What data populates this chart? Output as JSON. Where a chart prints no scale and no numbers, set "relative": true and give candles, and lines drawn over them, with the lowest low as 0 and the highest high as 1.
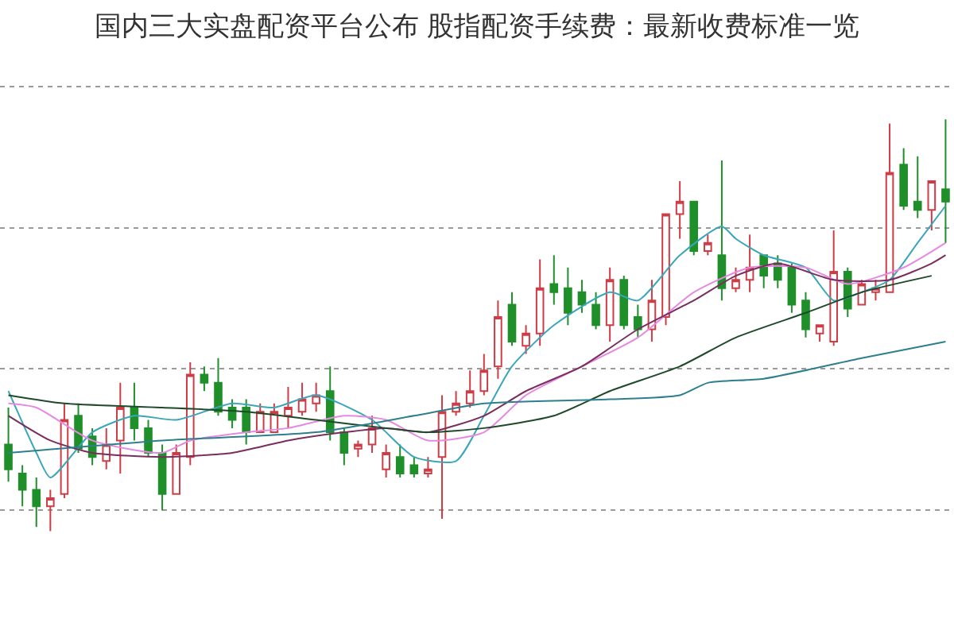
{
  "chart_data": {
    "type": "candlestick",
    "title": "国内三大实盘配资平台公布 股指配资手续费：最新收费标准一览",
    "relative": true,
    "grid": "y",
    "categories": [
      null,
      null,
      null,
      null,
      null,
      null,
      null,
      null,
      null,
      null,
      null,
      null,
      null,
      null,
      null,
      null,
      null,
      null,
      null,
      null,
      null,
      null,
      null,
      null,
      null,
      null,
      null,
      null,
      null,
      null,
      null,
      null,
      null,
      null,
      null,
      null,
      null,
      null,
      null,
      null,
      null,
      null,
      null,
      null,
      null,
      null,
      null,
      null,
      null,
      null,
      null,
      null,
      null,
      null,
      null,
      null,
      null,
      null,
      null,
      null,
      null,
      null,
      null,
      null,
      null,
      null,
      null,
      null
    ],
    "ohlc": [
      [
        0.21,
        0.3,
        0.12,
        0.15
      ],
      [
        0.14,
        0.16,
        0.06,
        0.1
      ],
      [
        0.1,
        0.13,
        0.01,
        0.06
      ],
      [
        0.06,
        0.1,
        0,
        0.08
      ],
      [
        0.09,
        0.31,
        0.08,
        0.27
      ],
      [
        0.28,
        0.31,
        0.19,
        0.2
      ],
      [
        0.23,
        0.25,
        0.16,
        0.18
      ],
      [
        0.17,
        0.25,
        0.15,
        0.21
      ],
      [
        0.22,
        0.36,
        0.14,
        0.3
      ],
      [
        0.3,
        0.36,
        0.22,
        0.25
      ],
      [
        0.25,
        0.27,
        0.18,
        0.19
      ],
      [
        0.19,
        0.21,
        0.05,
        0.09
      ],
      [
        0.09,
        0.21,
        0.09,
        0.19
      ],
      [
        0.18,
        0.41,
        0.16,
        0.38
      ],
      [
        0.38,
        0.4,
        0.34,
        0.36
      ],
      [
        0.36,
        0.42,
        0.28,
        0.29
      ],
      [
        0.3,
        0.32,
        0.25,
        0.27
      ],
      [
        0.3,
        0.32,
        0.21,
        0.24
      ],
      [
        0.24,
        0.31,
        0.24,
        0.29
      ],
      [
        0.24,
        0.31,
        0.24,
        0.29
      ],
      [
        0.28,
        0.35,
        0.25,
        0.3
      ],
      [
        0.29,
        0.36,
        0.28,
        0.32
      ],
      [
        0.31,
        0.36,
        0.29,
        0.33
      ],
      [
        0.34,
        0.4,
        0.22,
        0.24
      ],
      [
        0.24,
        0.25,
        0.16,
        0.19
      ],
      [
        0.2,
        0.22,
        0.18,
        0.21
      ],
      [
        0.21,
        0.28,
        0.19,
        0.25
      ],
      [
        0.15,
        0.21,
        0.13,
        0.19
      ],
      [
        0.18,
        0.21,
        0.13,
        0.14
      ],
      [
        0.16,
        0.18,
        0.13,
        0.14
      ],
      [
        0.14,
        0.18,
        0.13,
        0.15
      ],
      [
        0.18,
        0.33,
        0.03,
        0.29
      ],
      [
        0.29,
        0.34,
        0.28,
        0.31
      ],
      [
        0.31,
        0.39,
        0.3,
        0.34
      ],
      [
        0.34,
        0.43,
        0.33,
        0.39
      ],
      [
        0.4,
        0.56,
        0.37,
        0.52
      ],
      [
        0.55,
        0.58,
        0.45,
        0.46
      ],
      [
        0.45,
        0.5,
        0.43,
        0.48
      ],
      [
        0.48,
        0.66,
        0.45,
        0.59
      ],
      [
        0.6,
        0.67,
        0.55,
        0.58
      ],
      [
        0.59,
        0.64,
        0.5,
        0.53
      ],
      [
        0.58,
        0.61,
        0.53,
        0.55
      ],
      [
        0.55,
        0.58,
        0.49,
        0.5
      ],
      [
        0.5,
        0.64,
        0.46,
        0.61
      ],
      [
        0.61,
        0.62,
        0.49,
        0.5
      ],
      [
        0.52,
        0.55,
        0.47,
        0.49
      ],
      [
        0.49,
        0.61,
        0.46,
        0.56
      ],
      [
        0.52,
        0.77,
        0.5,
        0.77
      ],
      [
        0.77,
        0.85,
        0.71,
        0.8
      ],
      [
        0.8,
        0.8,
        0.67,
        0.68
      ],
      [
        0.68,
        0.72,
        0.67,
        0.7
      ],
      [
        0.67,
        0.9,
        0.56,
        0.59
      ],
      [
        0.59,
        0.64,
        0.58,
        0.61
      ],
      [
        0.61,
        0.72,
        0.58,
        0.64
      ],
      [
        0.67,
        0.67,
        0.59,
        0.62
      ],
      [
        0.65,
        0.67,
        0.59,
        0.61
      ],
      [
        0.64,
        0.65,
        0.53,
        0.55
      ],
      [
        0.56,
        0.58,
        0.47,
        0.49
      ],
      [
        0.48,
        0.5,
        0.46,
        0.5
      ],
      [
        0.46,
        0.73,
        0.45,
        0.63
      ],
      [
        0.63,
        0.64,
        0.52,
        0.54
      ],
      [
        0.55,
        0.61,
        0.55,
        0.6
      ],
      [
        0.58,
        0.61,
        0.56,
        0.59
      ],
      [
        0.58,
        0.99,
        0.58,
        0.87
      ],
      [
        0.89,
        0.93,
        0.78,
        0.79
      ],
      [
        0.8,
        0.91,
        0.76,
        0.78
      ],
      [
        0.78,
        0.85,
        0.73,
        0.85
      ],
      [
        0.83,
        1,
        0.7,
        0.8
      ]
    ],
    "colors": [
      "#1f8f2a",
      "#1f8f2a",
      "#1f8f2a",
      "#d03c46",
      "#d03c46",
      "#1f8f2a",
      "#1f8f2a",
      "#d03c46",
      "#d03c46",
      "#1f8f2a",
      "#1f8f2a",
      "#1f8f2a",
      "#d03c46",
      "#d03c46",
      "#1f8f2a",
      "#1f8f2a",
      "#1f8f2a",
      "#1f8f2a",
      "#d03c46",
      "#d03c46",
      "#d03c46",
      "#d03c46",
      "#d03c46",
      "#1f8f2a",
      "#1f8f2a",
      "#d03c46",
      "#d03c46",
      "#d03c46",
      "#1f8f2a",
      "#1f8f2a",
      "#d03c46",
      "#d03c46",
      "#d03c46",
      "#d03c46",
      "#d03c46",
      "#d03c46",
      "#1f8f2a",
      "#d03c46",
      "#d03c46",
      "#1f8f2a",
      "#1f8f2a",
      "#1f8f2a",
      "#1f8f2a",
      "#d03c46",
      "#1f8f2a",
      "#1f8f2a",
      "#d03c46",
      "#d03c46",
      "#d03c46",
      "#1f8f2a",
      "#d03c46",
      "#1f8f2a",
      "#d03c46",
      "#d03c46",
      "#1f8f2a",
      "#1f8f2a",
      "#1f8f2a",
      "#1f8f2a",
      "#d03c46",
      "#d03c46",
      "#1f8f2a",
      "#d03c46",
      "#d03c46",
      "#d03c46",
      "#1f8f2a",
      "#1f8f2a",
      "#d03c46",
      "#1f8f2a"
    ],
    "series": [
      {
        "type": "line",
        "color": "#3aa6b8",
        "values": [
          0.34,
          null,
          0.19,
          0.13,
          null,
          null,
          0.24,
          null,
          null,
          0.28,
          null,
          null,
          0.27,
          null,
          null,
          null,
          0.31,
          null,
          null,
          0.3,
          null,
          null,
          0.33,
          null,
          null,
          null,
          0.27,
          null,
          null,
          0.18,
          null,
          null,
          0.17,
          null,
          0.28,
          null,
          0.4,
          null,
          null,
          0.5,
          null,
          null,
          null,
          0.58,
          null,
          0.56,
          null,
          null,
          0.67,
          null,
          null,
          0.74,
          0.71,
          null,
          0.67,
          null,
          null,
          0.64,
          null,
          0.56,
          null,
          0.58,
          null,
          0.61,
          null,
          0.7,
          null,
          0.79
        ]
      },
      {
        "type": "line",
        "color": "#e58ae0",
        "values": [
          0.31,
          null,
          0.3,
          null,
          null,
          null,
          0.22,
          null,
          null,
          null,
          null,
          0.19,
          null,
          0.22,
          null,
          null,
          null,
          0.24,
          null,
          null,
          0.25,
          null,
          null,
          null,
          0.28,
          null,
          null,
          0.27,
          null,
          null,
          0.22,
          null,
          null,
          null,
          0.24,
          null,
          null,
          0.33,
          null,
          null,
          null,
          0.4,
          null,
          null,
          null,
          0.47,
          null,
          null,
          null,
          0.58,
          null,
          null,
          null,
          0.64,
          null,
          null,
          null,
          0.64,
          null,
          null,
          0.6,
          null,
          null,
          null,
          0.64,
          null,
          null,
          0.7
        ]
      },
      {
        "type": "line",
        "color": "#7a2e5e",
        "values": [
          0.28,
          null,
          null,
          0.22,
          null,
          null,
          0.19,
          null,
          null,
          null,
          null,
          0.18,
          null,
          null,
          null,
          null,
          0.19,
          null,
          null,
          null,
          0.22,
          null,
          null,
          null,
          0.24,
          null,
          null,
          0.25,
          null,
          null,
          0.24,
          null,
          null,
          null,
          0.28,
          null,
          null,
          0.34,
          null,
          null,
          null,
          0.4,
          null,
          null,
          null,
          0.49,
          null,
          null,
          null,
          0.56,
          null,
          null,
          0.62,
          null,
          null,
          0.65,
          null,
          null,
          null,
          0.61,
          null,
          null,
          null,
          0.61,
          null,
          null,
          0.65,
          0.67
        ]
      },
      {
        "type": "line",
        "color": "#1e4a2a",
        "values": [
          0.33,
          null,
          null,
          null,
          0.31,
          null,
          null,
          null,
          null,
          null,
          null,
          0.3,
          null,
          null,
          null,
          null,
          null,
          0.29,
          null,
          null,
          null,
          null,
          0.27,
          null,
          null,
          null,
          null,
          0.25,
          null,
          null,
          0.24,
          null,
          null,
          null,
          0.25,
          null,
          null,
          null,
          null,
          0.28,
          null,
          null,
          null,
          0.34,
          null,
          null,
          null,
          null,
          0.4,
          null,
          null,
          null,
          0.47,
          null,
          null,
          null,
          null,
          0.53,
          null,
          null,
          null,
          0.58,
          null,
          null,
          null,
          null,
          0.62,
          null
        ]
      },
      {
        "type": "line",
        "color": "#2e7f8e",
        "values": [
          0.19,
          null,
          null,
          null,
          null,
          null,
          null,
          null,
          null,
          null,
          null,
          0.22,
          null,
          null,
          null,
          null,
          null,
          null,
          null,
          null,
          null,
          null,
          0.24,
          null,
          null,
          null,
          null,
          null,
          null,
          0.28,
          null,
          null,
          null,
          null,
          0.31,
          null,
          null,
          null,
          null,
          null,
          null,
          null,
          null,
          0.32,
          null,
          null,
          null,
          null,
          0.33,
          null,
          0.36,
          null,
          null,
          null,
          0.37,
          null,
          null,
          null,
          null,
          null,
          null,
          0.42,
          null,
          null,
          null,
          null,
          null,
          0.46
        ]
      }
    ]
  }
}
